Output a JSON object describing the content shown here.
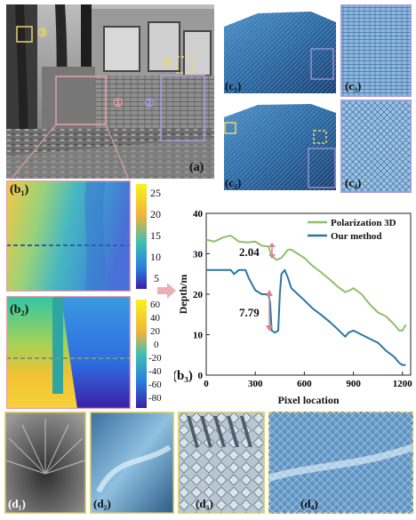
{
  "panels": {
    "a": {
      "label": "(a)",
      "region_marks": [
        "①",
        "②",
        "③"
      ]
    },
    "b1": {
      "label": "(b₁)",
      "colorbar_ticks": [
        "25",
        "20",
        "15",
        "10",
        "5"
      ]
    },
    "b2": {
      "label": "(b₂)",
      "colorbar_ticks": [
        "60",
        "40",
        "20",
        "0",
        "-20",
        "-40",
        "-60",
        "-80"
      ]
    },
    "b3": {
      "label": "(b₃)"
    },
    "c1": {
      "label": "(c₁)"
    },
    "c2": {
      "label": "(c₂)"
    },
    "c3": {
      "label": "(c₃)"
    },
    "c4": {
      "label": "(c₄)"
    },
    "d1": {
      "label": "(d₁)"
    },
    "d2": {
      "label": "(d₂)"
    },
    "d3": {
      "label": "(d₃)"
    },
    "d4": {
      "label": "(d₄)"
    }
  },
  "chart_data": {
    "type": "line",
    "xlabel": "Pixel location",
    "ylabel": "Depth/m",
    "xlim": [
      0,
      1250
    ],
    "ylim": [
      0,
      40
    ],
    "xticks": [
      "0",
      "300",
      "600",
      "900",
      "1200"
    ],
    "yticks": [
      "0",
      "10",
      "20",
      "30",
      "40"
    ],
    "legend_position": "top-right",
    "annotations": [
      "2.04",
      "7.79"
    ],
    "series": [
      {
        "name": "Polarization 3D",
        "color": "#8dc06a",
        "x": [
          0,
          50,
          100,
          150,
          200,
          250,
          300,
          340,
          380,
          400,
          430,
          460,
          480,
          500,
          520,
          560,
          600,
          650,
          700,
          760,
          800,
          850,
          880,
          900,
          950,
          1000,
          1050,
          1100,
          1150,
          1180,
          1200,
          1220
        ],
        "y": [
          33.5,
          33,
          34,
          34.5,
          33,
          32.8,
          33,
          32,
          31.8,
          29.5,
          28.5,
          29,
          30,
          31,
          31,
          30,
          29,
          27,
          25.5,
          23.5,
          22,
          20.5,
          21,
          21.5,
          20,
          17.5,
          15.5,
          14.5,
          12.5,
          11,
          11,
          12.5
        ]
      },
      {
        "name": "Our method",
        "color": "#2b76a4",
        "x": [
          0,
          50,
          100,
          150,
          170,
          200,
          240,
          260,
          300,
          340,
          380,
          390,
          400,
          420,
          440,
          450,
          460,
          480,
          500,
          520,
          560,
          600,
          650,
          700,
          760,
          800,
          850,
          870,
          900,
          950,
          1000,
          1050,
          1100,
          1150,
          1180,
          1200,
          1220
        ],
        "y": [
          26,
          26,
          26,
          26,
          25,
          26,
          26,
          24,
          21,
          20,
          20,
          18,
          11,
          10.5,
          11,
          20,
          25,
          26,
          24,
          21.5,
          20,
          18.5,
          16.5,
          15,
          13,
          11.5,
          9.5,
          10.5,
          11,
          10,
          9,
          8,
          6,
          4.5,
          3,
          2.5,
          2.5
        ]
      }
    ]
  }
}
